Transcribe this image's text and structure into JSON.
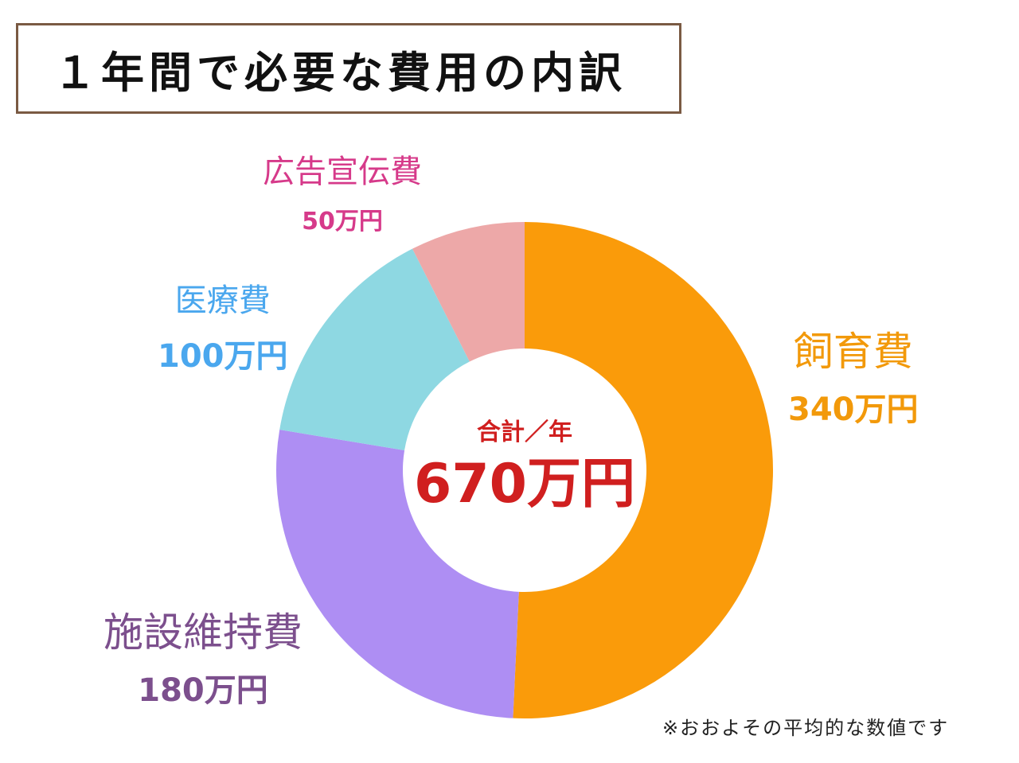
{
  "title": "１年間で必要な費用の内訳",
  "center": {
    "label": "合計／年",
    "value": "670万円"
  },
  "note": "※おおよその平均的な数値です",
  "chart_data": {
    "type": "pie",
    "title": "１年間で必要な費用の内訳",
    "unit": "万円",
    "total": 670,
    "slices": [
      {
        "name": "飼育費",
        "value": 340,
        "label": "340万円",
        "color": "#fa9b0a",
        "text_color": "#f2990a"
      },
      {
        "name": "施設維持費",
        "value": 180,
        "label": "180万円",
        "color": "#ae8ef3",
        "text_color": "#7c4f8d"
      },
      {
        "name": "医療費",
        "value": 100,
        "label": "100万円",
        "color": "#8ed8e2",
        "text_color": "#4aa7ee"
      },
      {
        "name": "広告宣伝費",
        "value": 50,
        "label": "50万円",
        "color": "#eda8a8",
        "text_color": "#d63a8a"
      }
    ]
  },
  "colors": {
    "center_text": "#d01f1f",
    "title_border": "#7a5a43"
  }
}
